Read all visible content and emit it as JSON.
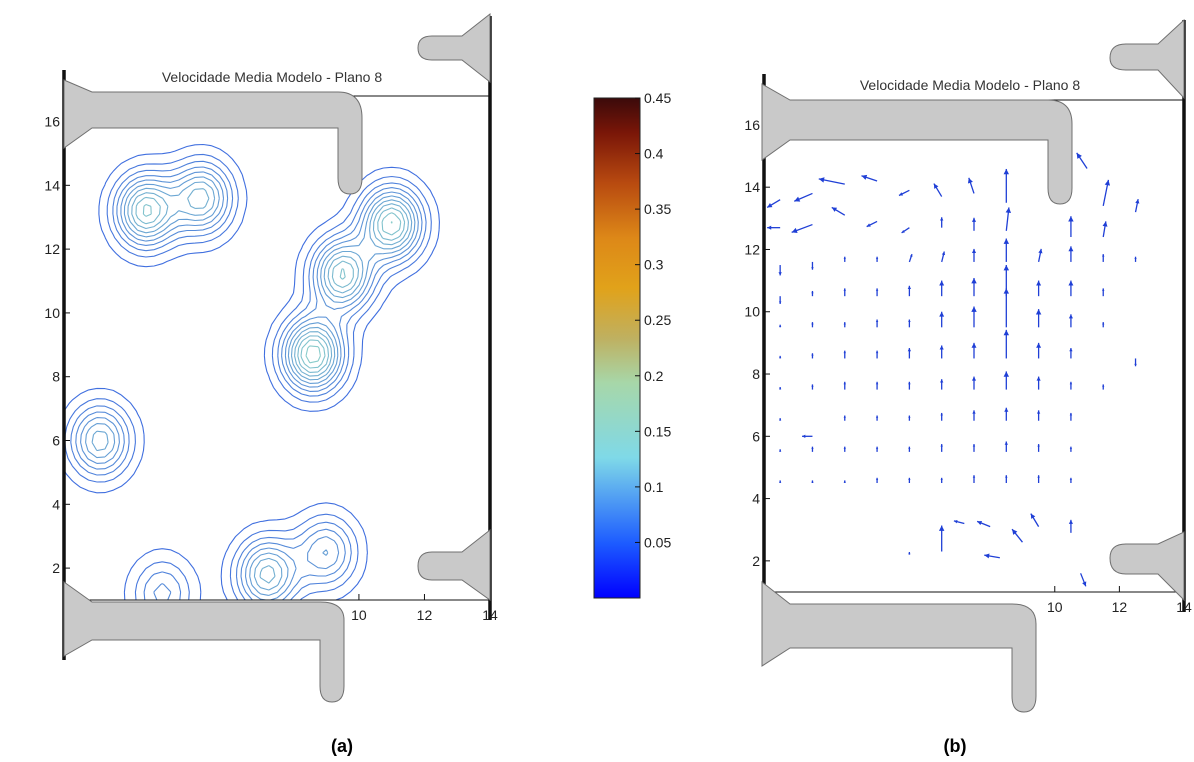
{
  "chart_data": [
    {
      "type": "contour",
      "title": "Velocidade Media Modelo - Plano  8",
      "panel_label": "(a)",
      "xlim": [
        1,
        14
      ],
      "ylim": [
        1,
        16.8
      ],
      "x_ticks": [
        "10",
        "12",
        "14"
      ],
      "y_ticks": [
        "2",
        "4",
        "6",
        "8",
        "10",
        "12",
        "14",
        "16"
      ],
      "colorbar": {
        "range": [
          0,
          0.45
        ],
        "ticks": [
          "0.05",
          "0.1",
          "0.15",
          "0.2",
          "0.25",
          "0.3",
          "0.35",
          "0.4",
          "0.45"
        ]
      },
      "peaks": [
        {
          "x": 3.5,
          "y": 13.2,
          "v": 0.17
        },
        {
          "x": 5.2,
          "y": 13.6,
          "v": 0.15
        },
        {
          "x": 9.5,
          "y": 11.2,
          "v": 0.17
        },
        {
          "x": 11.0,
          "y": 12.8,
          "v": 0.18
        },
        {
          "x": 8.6,
          "y": 8.7,
          "v": 0.19
        },
        {
          "x": 2.1,
          "y": 6.0,
          "v": 0.14
        },
        {
          "x": 7.2,
          "y": 1.8,
          "v": 0.15
        },
        {
          "x": 9.0,
          "y": 2.5,
          "v": 0.12
        },
        {
          "x": 4.0,
          "y": 1.2,
          "v": 0.1
        }
      ]
    },
    {
      "type": "quiver",
      "title": "Velocidade Media Modelo - Plano  8",
      "panel_label": "(b)",
      "xlim": [
        1,
        14
      ],
      "ylim": [
        1,
        16.8
      ],
      "x_ticks": [
        "10",
        "12",
        "14"
      ],
      "y_ticks": [
        "2",
        "4",
        "6",
        "8",
        "10",
        "12",
        "14",
        "16"
      ],
      "vector_color": "#1f3fd6",
      "vectors": [
        {
          "x": 1.5,
          "y": 13.6,
          "u": -0.5,
          "v": -0.3
        },
        {
          "x": 2.5,
          "y": 13.8,
          "u": -0.7,
          "v": -0.3
        },
        {
          "x": 3.5,
          "y": 14.1,
          "u": -1.0,
          "v": 0.2
        },
        {
          "x": 4.5,
          "y": 14.2,
          "u": -0.6,
          "v": 0.2
        },
        {
          "x": 5.5,
          "y": 13.9,
          "u": -0.4,
          "v": -0.2
        },
        {
          "x": 6.5,
          "y": 13.7,
          "u": -0.3,
          "v": 0.5
        },
        {
          "x": 7.5,
          "y": 13.8,
          "u": -0.2,
          "v": 0.6
        },
        {
          "x": 8.5,
          "y": 13.5,
          "u": 0.0,
          "v": 1.3
        },
        {
          "x": 10.5,
          "y": 15.3,
          "u": -0.2,
          "v": 1.0
        },
        {
          "x": 11.0,
          "y": 14.6,
          "u": -0.4,
          "v": 0.6
        },
        {
          "x": 11.5,
          "y": 13.4,
          "u": 0.2,
          "v": 1.0
        },
        {
          "x": 12.5,
          "y": 13.2,
          "u": 0.1,
          "v": 0.5
        },
        {
          "x": 1.5,
          "y": 12.7,
          "u": -0.5,
          "v": 0.0
        },
        {
          "x": 2.5,
          "y": 12.8,
          "u": -0.8,
          "v": -0.3
        },
        {
          "x": 3.5,
          "y": 13.1,
          "u": -0.5,
          "v": 0.3
        },
        {
          "x": 4.5,
          "y": 12.9,
          "u": -0.4,
          "v": -0.2
        },
        {
          "x": 5.5,
          "y": 12.7,
          "u": -0.3,
          "v": -0.2
        },
        {
          "x": 6.5,
          "y": 12.7,
          "u": 0.0,
          "v": 0.4
        },
        {
          "x": 7.5,
          "y": 12.6,
          "u": 0.0,
          "v": 0.5
        },
        {
          "x": 8.5,
          "y": 12.6,
          "u": 0.1,
          "v": 0.9
        },
        {
          "x": 10.5,
          "y": 12.4,
          "u": 0.0,
          "v": 0.8
        },
        {
          "x": 11.5,
          "y": 12.4,
          "u": 0.1,
          "v": 0.6
        },
        {
          "x": 1.5,
          "y": 11.5,
          "u": 0.0,
          "v": -0.4
        },
        {
          "x": 2.5,
          "y": 11.6,
          "u": 0.0,
          "v": -0.3
        },
        {
          "x": 3.5,
          "y": 11.6,
          "u": 0.0,
          "v": 0.2
        },
        {
          "x": 4.5,
          "y": 11.6,
          "u": 0.0,
          "v": 0.2
        },
        {
          "x": 5.5,
          "y": 11.6,
          "u": 0.1,
          "v": 0.3
        },
        {
          "x": 6.5,
          "y": 11.6,
          "u": 0.1,
          "v": 0.4
        },
        {
          "x": 7.5,
          "y": 11.6,
          "u": 0.0,
          "v": 0.5
        },
        {
          "x": 8.5,
          "y": 11.6,
          "u": 0.0,
          "v": 0.9
        },
        {
          "x": 9.5,
          "y": 11.6,
          "u": 0.1,
          "v": 0.5
        },
        {
          "x": 10.5,
          "y": 11.6,
          "u": 0.0,
          "v": 0.6
        },
        {
          "x": 11.5,
          "y": 11.6,
          "u": 0.0,
          "v": 0.3
        },
        {
          "x": 12.5,
          "y": 11.6,
          "u": 0.0,
          "v": 0.2
        },
        {
          "x": 1.5,
          "y": 10.5,
          "u": 0.0,
          "v": -0.3
        },
        {
          "x": 2.5,
          "y": 10.5,
          "u": 0.0,
          "v": 0.2
        },
        {
          "x": 3.5,
          "y": 10.5,
          "u": 0.0,
          "v": 0.3
        },
        {
          "x": 4.5,
          "y": 10.5,
          "u": 0.0,
          "v": 0.3
        },
        {
          "x": 5.5,
          "y": 10.5,
          "u": 0.0,
          "v": 0.4
        },
        {
          "x": 6.5,
          "y": 10.5,
          "u": 0.0,
          "v": 0.6
        },
        {
          "x": 7.5,
          "y": 10.5,
          "u": 0.0,
          "v": 0.7
        },
        {
          "x": 8.5,
          "y": 10.5,
          "u": 0.0,
          "v": 1.2
        },
        {
          "x": 9.5,
          "y": 10.5,
          "u": 0.0,
          "v": 0.6
        },
        {
          "x": 10.5,
          "y": 10.5,
          "u": 0.0,
          "v": 0.6
        },
        {
          "x": 11.5,
          "y": 10.5,
          "u": 0.0,
          "v": 0.3
        },
        {
          "x": 1.5,
          "y": 9.5,
          "u": 0.0,
          "v": 0.1
        },
        {
          "x": 2.5,
          "y": 9.5,
          "u": 0.0,
          "v": 0.2
        },
        {
          "x": 3.5,
          "y": 9.5,
          "u": 0.0,
          "v": 0.2
        },
        {
          "x": 4.5,
          "y": 9.5,
          "u": 0.0,
          "v": 0.3
        },
        {
          "x": 5.5,
          "y": 9.5,
          "u": 0.0,
          "v": 0.3
        },
        {
          "x": 6.5,
          "y": 9.5,
          "u": 0.0,
          "v": 0.6
        },
        {
          "x": 7.5,
          "y": 9.5,
          "u": 0.0,
          "v": 0.8
        },
        {
          "x": 8.5,
          "y": 9.5,
          "u": 0.0,
          "v": 1.5
        },
        {
          "x": 9.5,
          "y": 9.5,
          "u": 0.0,
          "v": 0.7
        },
        {
          "x": 10.5,
          "y": 9.5,
          "u": 0.0,
          "v": 0.5
        },
        {
          "x": 11.5,
          "y": 9.5,
          "u": 0.0,
          "v": 0.2
        },
        {
          "x": 1.5,
          "y": 8.5,
          "u": 0.0,
          "v": 0.1
        },
        {
          "x": 2.5,
          "y": 8.5,
          "u": 0.0,
          "v": 0.2
        },
        {
          "x": 3.5,
          "y": 8.5,
          "u": 0.0,
          "v": 0.3
        },
        {
          "x": 4.5,
          "y": 8.5,
          "u": 0.0,
          "v": 0.3
        },
        {
          "x": 5.5,
          "y": 8.5,
          "u": 0.0,
          "v": 0.4
        },
        {
          "x": 6.5,
          "y": 8.5,
          "u": 0.0,
          "v": 0.5
        },
        {
          "x": 7.5,
          "y": 8.5,
          "u": 0.0,
          "v": 0.6
        },
        {
          "x": 8.5,
          "y": 8.5,
          "u": 0.0,
          "v": 1.1
        },
        {
          "x": 9.5,
          "y": 8.5,
          "u": 0.0,
          "v": 0.6
        },
        {
          "x": 10.5,
          "y": 8.5,
          "u": 0.0,
          "v": 0.4
        },
        {
          "x": 12.5,
          "y": 8.5,
          "u": 0.0,
          "v": -0.3
        },
        {
          "x": 1.5,
          "y": 7.5,
          "u": 0.0,
          "v": 0.1
        },
        {
          "x": 2.5,
          "y": 7.5,
          "u": 0.0,
          "v": 0.2
        },
        {
          "x": 3.5,
          "y": 7.5,
          "u": 0.0,
          "v": 0.3
        },
        {
          "x": 4.5,
          "y": 7.5,
          "u": 0.0,
          "v": 0.3
        },
        {
          "x": 5.5,
          "y": 7.5,
          "u": 0.0,
          "v": 0.3
        },
        {
          "x": 6.5,
          "y": 7.5,
          "u": 0.0,
          "v": 0.4
        },
        {
          "x": 7.5,
          "y": 7.5,
          "u": 0.0,
          "v": 0.5
        },
        {
          "x": 8.5,
          "y": 7.5,
          "u": 0.0,
          "v": 0.7
        },
        {
          "x": 9.5,
          "y": 7.5,
          "u": 0.0,
          "v": 0.5
        },
        {
          "x": 10.5,
          "y": 7.5,
          "u": 0.0,
          "v": 0.3
        },
        {
          "x": 11.5,
          "y": 7.5,
          "u": 0.0,
          "v": 0.2
        },
        {
          "x": 1.5,
          "y": 6.5,
          "u": 0.0,
          "v": 0.1
        },
        {
          "x": 2.5,
          "y": 6.0,
          "u": -0.4,
          "v": 0.0
        },
        {
          "x": 3.5,
          "y": 6.5,
          "u": 0.0,
          "v": 0.2
        },
        {
          "x": 4.5,
          "y": 6.5,
          "u": 0.0,
          "v": 0.2
        },
        {
          "x": 5.5,
          "y": 6.5,
          "u": 0.0,
          "v": 0.2
        },
        {
          "x": 6.5,
          "y": 6.5,
          "u": 0.0,
          "v": 0.3
        },
        {
          "x": 7.5,
          "y": 6.5,
          "u": 0.0,
          "v": 0.4
        },
        {
          "x": 8.5,
          "y": 6.5,
          "u": 0.0,
          "v": 0.5
        },
        {
          "x": 9.5,
          "y": 6.5,
          "u": 0.0,
          "v": 0.4
        },
        {
          "x": 10.5,
          "y": 6.5,
          "u": 0.0,
          "v": 0.3
        },
        {
          "x": 1.5,
          "y": 5.5,
          "u": 0.0,
          "v": 0.1
        },
        {
          "x": 2.5,
          "y": 5.5,
          "u": 0.0,
          "v": 0.2
        },
        {
          "x": 3.5,
          "y": 5.5,
          "u": 0.0,
          "v": 0.2
        },
        {
          "x": 4.5,
          "y": 5.5,
          "u": 0.0,
          "v": 0.2
        },
        {
          "x": 5.5,
          "y": 5.5,
          "u": 0.0,
          "v": 0.2
        },
        {
          "x": 6.5,
          "y": 5.5,
          "u": 0.0,
          "v": 0.3
        },
        {
          "x": 7.5,
          "y": 5.5,
          "u": 0.0,
          "v": 0.3
        },
        {
          "x": 8.5,
          "y": 5.5,
          "u": 0.0,
          "v": 0.4
        },
        {
          "x": 9.5,
          "y": 5.5,
          "u": 0.0,
          "v": 0.3
        },
        {
          "x": 10.5,
          "y": 5.5,
          "u": 0.0,
          "v": 0.2
        },
        {
          "x": 1.5,
          "y": 4.5,
          "u": 0.0,
          "v": 0.1
        },
        {
          "x": 2.5,
          "y": 4.5,
          "u": 0.0,
          "v": 0.1
        },
        {
          "x": 3.5,
          "y": 4.5,
          "u": 0.0,
          "v": 0.1
        },
        {
          "x": 4.5,
          "y": 4.5,
          "u": 0.0,
          "v": 0.2
        },
        {
          "x": 5.5,
          "y": 4.5,
          "u": 0.0,
          "v": 0.2
        },
        {
          "x": 6.5,
          "y": 4.5,
          "u": 0.0,
          "v": 0.2
        },
        {
          "x": 7.5,
          "y": 4.5,
          "u": 0.0,
          "v": 0.3
        },
        {
          "x": 8.5,
          "y": 4.5,
          "u": 0.0,
          "v": 0.3
        },
        {
          "x": 9.5,
          "y": 4.5,
          "u": 0.0,
          "v": 0.3
        },
        {
          "x": 10.5,
          "y": 4.5,
          "u": 0.0,
          "v": 0.2
        },
        {
          "x": 6.5,
          "y": 2.3,
          "u": 0.0,
          "v": 1.0
        },
        {
          "x": 7.2,
          "y": 3.2,
          "u": -0.4,
          "v": 0.1
        },
        {
          "x": 8.0,
          "y": 3.1,
          "u": -0.5,
          "v": 0.2
        },
        {
          "x": 9.0,
          "y": 2.6,
          "u": -0.4,
          "v": 0.5
        },
        {
          "x": 8.3,
          "y": 2.1,
          "u": -0.6,
          "v": 0.1
        },
        {
          "x": 9.5,
          "y": 3.1,
          "u": -0.3,
          "v": 0.5
        },
        {
          "x": 10.5,
          "y": 2.9,
          "u": 0.0,
          "v": 0.5
        },
        {
          "x": 10.8,
          "y": 1.6,
          "u": 0.2,
          "v": -0.5
        },
        {
          "x": 5.5,
          "y": 2.2,
          "u": 0.0,
          "v": 0.1
        }
      ]
    }
  ],
  "captions": {
    "a": "(a)",
    "b": "(b)"
  }
}
